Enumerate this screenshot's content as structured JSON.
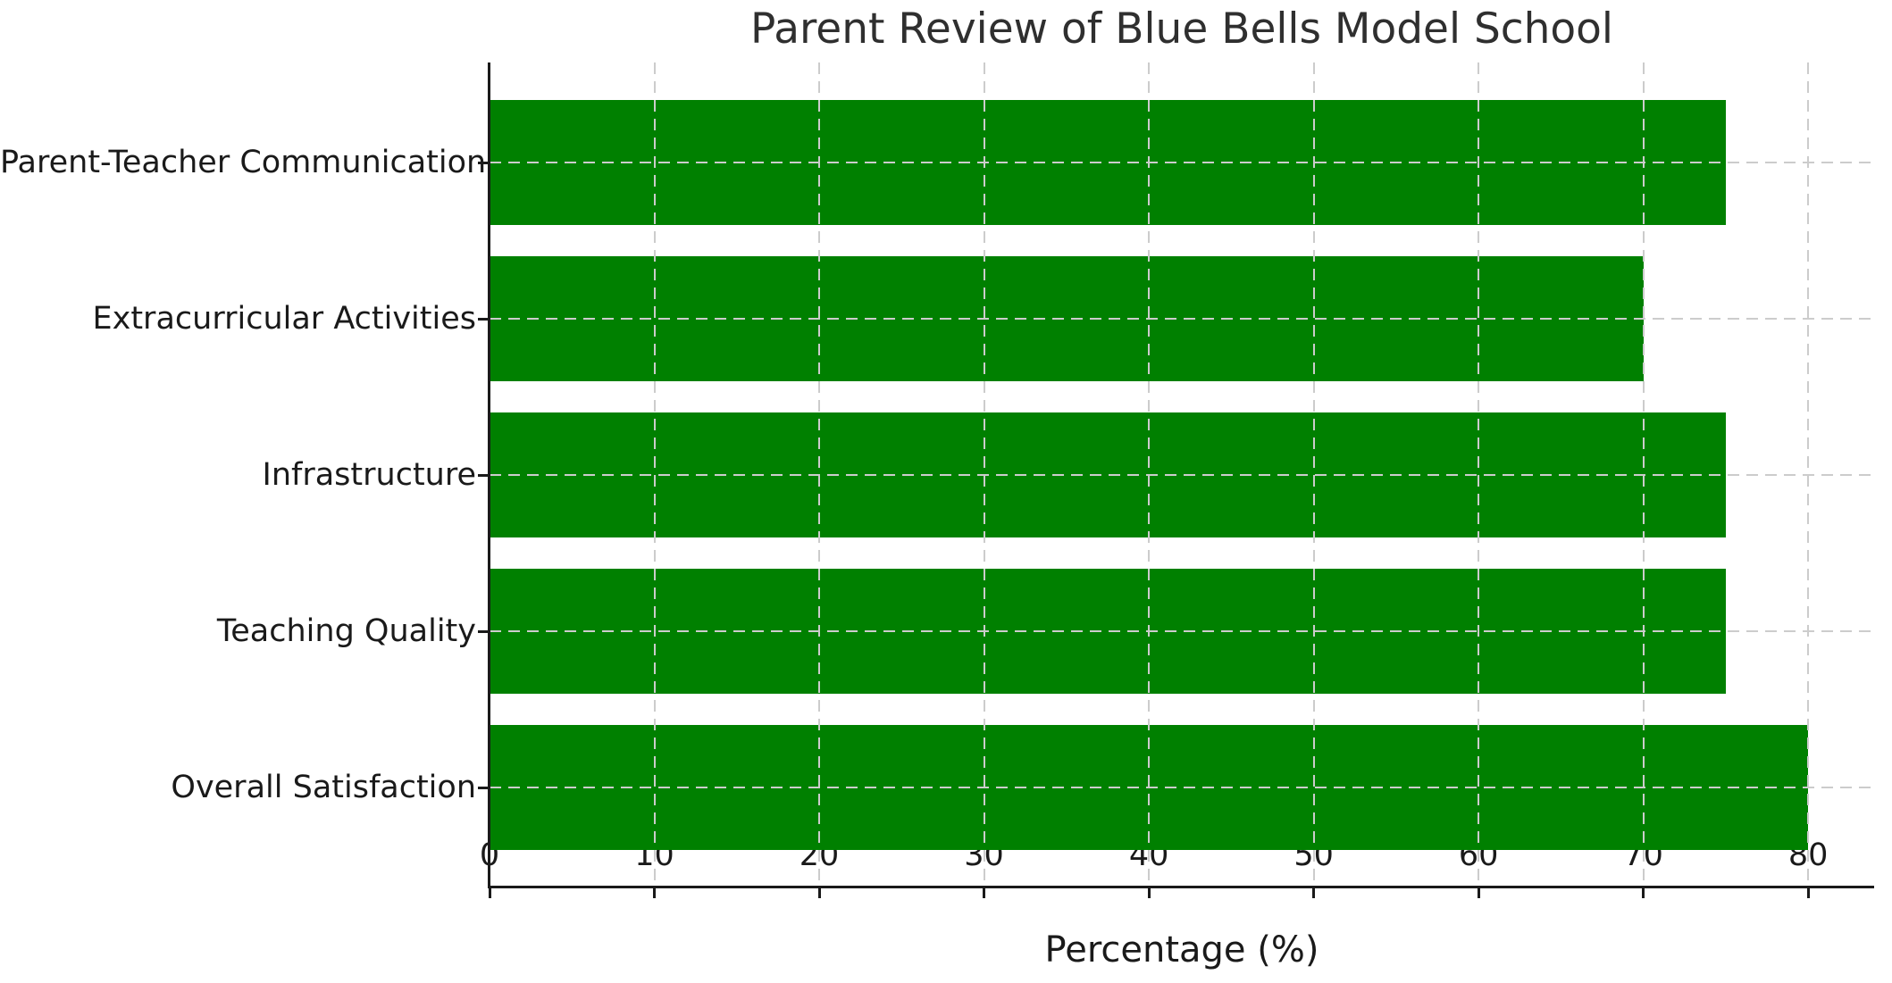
{
  "chart_data": {
    "type": "bar",
    "orientation": "horizontal",
    "title": "Parent Review of Blue Bells Model School",
    "xlabel": "Percentage (%)",
    "ylabel": "",
    "categories": [
      "Parent-Teacher Communication",
      "Extracurricular Activities",
      "Infrastructure",
      "Teaching Quality",
      "Overall Satisfaction"
    ],
    "values": [
      75,
      70,
      75,
      75,
      80
    ],
    "xlim": [
      0,
      84
    ],
    "xticks": [
      0,
      10,
      20,
      30,
      40,
      50,
      60,
      70,
      80
    ],
    "bar_color": "#008000",
    "grid": true,
    "grid_color": "#cccccc",
    "grid_style": "dashed",
    "spine_color": "#1a1a1a",
    "text_color": "#1a1a1a",
    "background_color": "#ffffff",
    "legend": "none"
  }
}
